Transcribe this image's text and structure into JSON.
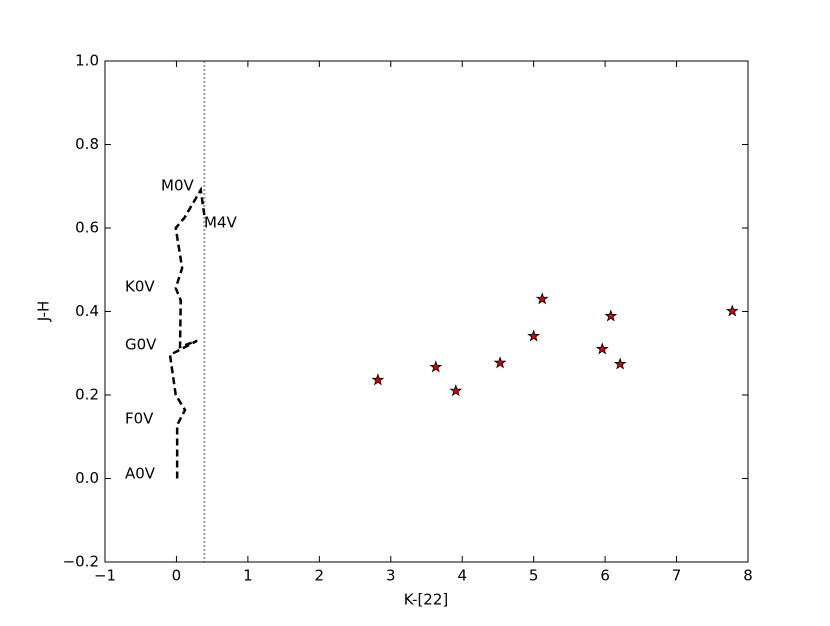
{
  "chart_data": {
    "type": "scatter",
    "xlabel": "K-[22]",
    "ylabel": "J-H",
    "xlim": [
      -1,
      8
    ],
    "ylim": [
      -0.2,
      1.0
    ],
    "xticks": [
      {
        "value": -1,
        "label": "−1"
      },
      0,
      1,
      2,
      3,
      4,
      5,
      6,
      7,
      8
    ],
    "yticks": [
      {
        "value": -0.2,
        "label": "−0.2"
      },
      {
        "value": 0,
        "label": "0.0"
      },
      0.2,
      0.4,
      0.6,
      0.8,
      {
        "value": 1.0,
        "label": "1.0"
      }
    ],
    "vline": 0.39,
    "vline_color": "#999999",
    "annotations": [
      "A0V",
      "F0V",
      "G0V",
      "K0V",
      "M0V",
      "M4V"
    ],
    "series": [
      {
        "type": "line",
        "color": "#000000",
        "x": [
          0.01,
          0.01,
          0.12,
          -0.01,
          -0.09,
          0.29,
          0.05,
          0.06,
          -0.01,
          0.08,
          -0.01,
          0.11,
          0.34,
          0.39
        ],
        "values": [
          0.0,
          0.128,
          0.164,
          0.2,
          0.296,
          0.33,
          0.315,
          0.427,
          0.456,
          0.504,
          0.6,
          0.624,
          0.691,
          0.631
        ]
      },
      {
        "type": "scatter",
        "color": "#d40000",
        "x": [
          2.82,
          3.63,
          3.91,
          4.53,
          5.0,
          5.12,
          5.96,
          6.08,
          6.21,
          7.78
        ],
        "values": [
          0.236,
          0.267,
          0.21,
          0.277,
          0.341,
          0.43,
          0.31,
          0.389,
          0.274,
          0.401
        ]
      }
    ]
  }
}
